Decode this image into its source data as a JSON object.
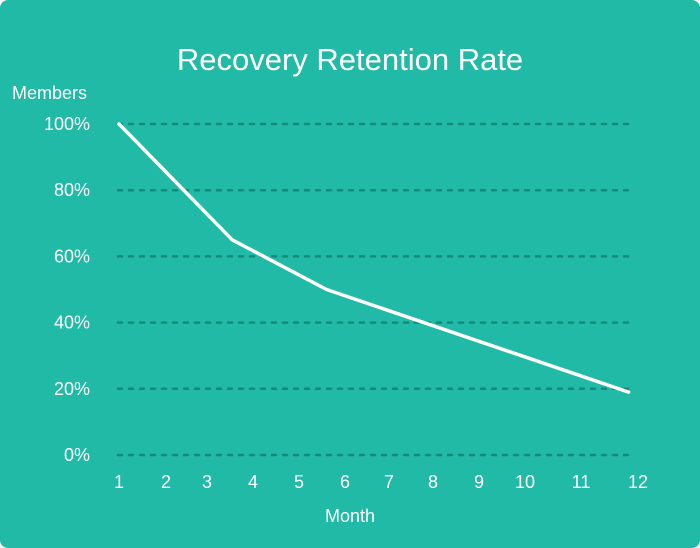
{
  "chart_data": {
    "type": "line",
    "title": "Recovery Retention Rate",
    "ylabel": "Members",
    "xlabel": "Month",
    "xlim": [
      1,
      12
    ],
    "ylim": [
      0,
      100
    ],
    "x_ticks": [
      "1",
      "2",
      "3",
      "4",
      "5",
      "6",
      "7",
      "8",
      "9",
      "10",
      "11",
      "12"
    ],
    "y_ticks": [
      {
        "value": 0,
        "label": "0%"
      },
      {
        "value": 20,
        "label": "20%"
      },
      {
        "value": 40,
        "label": "40%"
      },
      {
        "value": 60,
        "label": "60%"
      },
      {
        "value": 80,
        "label": "80%"
      },
      {
        "value": 100,
        "label": "100%"
      }
    ],
    "grid": "horizontal dashed",
    "series": [
      {
        "x": [
          1,
          3.4,
          5.4,
          11.8
        ],
        "y": [
          100,
          65,
          50,
          19
        ]
      }
    ],
    "colors": {
      "background": "#20BAA6",
      "line": "#FFFFFF",
      "grid": "#158A7A",
      "text": "#FFFFFF"
    }
  }
}
